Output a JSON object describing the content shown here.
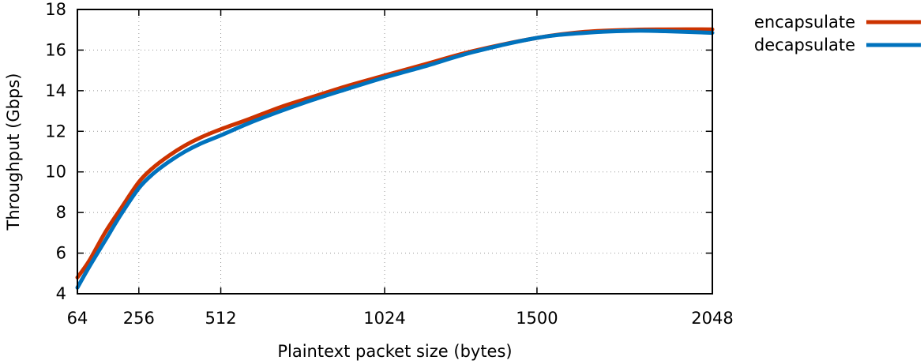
{
  "chart_data": {
    "type": "line",
    "title": "",
    "xlabel": "Plaintext packet size (bytes)",
    "ylabel": "Throughput (Gbps)",
    "xlim": [
      64,
      2048
    ],
    "ylim": [
      4,
      18
    ],
    "xticks": [
      64,
      256,
      512,
      1024,
      1500,
      2048
    ],
    "yticks": [
      4,
      6,
      8,
      10,
      12,
      14,
      16,
      18
    ],
    "grid": true,
    "legend_position": "top-right outside",
    "series": [
      {
        "name": "encapsulate",
        "color": "#cc3300",
        "x": [
          64,
          100,
          150,
          200,
          256,
          300,
          350,
          400,
          450,
          512,
          600,
          700,
          800,
          900,
          1024,
          1150,
          1300,
          1500,
          1650,
          1800,
          1900,
          2048
        ],
        "y": [
          4.8,
          5.6,
          7.0,
          8.2,
          9.5,
          10.2,
          10.8,
          11.3,
          11.7,
          12.1,
          12.6,
          13.2,
          13.7,
          14.2,
          14.75,
          15.3,
          15.95,
          16.6,
          16.9,
          17.0,
          17.02,
          17.02
        ]
      },
      {
        "name": "decapsulate",
        "color": "#0072bd",
        "x": [
          64,
          100,
          150,
          200,
          256,
          300,
          350,
          400,
          450,
          512,
          600,
          700,
          800,
          900,
          1024,
          1150,
          1300,
          1500,
          1650,
          1800,
          1900,
          2048
        ],
        "y": [
          4.3,
          5.3,
          6.6,
          7.9,
          9.2,
          9.9,
          10.5,
          11.0,
          11.4,
          11.8,
          12.4,
          13.0,
          13.55,
          14.05,
          14.65,
          15.2,
          15.9,
          16.6,
          16.85,
          16.95,
          16.93,
          16.85
        ]
      }
    ]
  }
}
